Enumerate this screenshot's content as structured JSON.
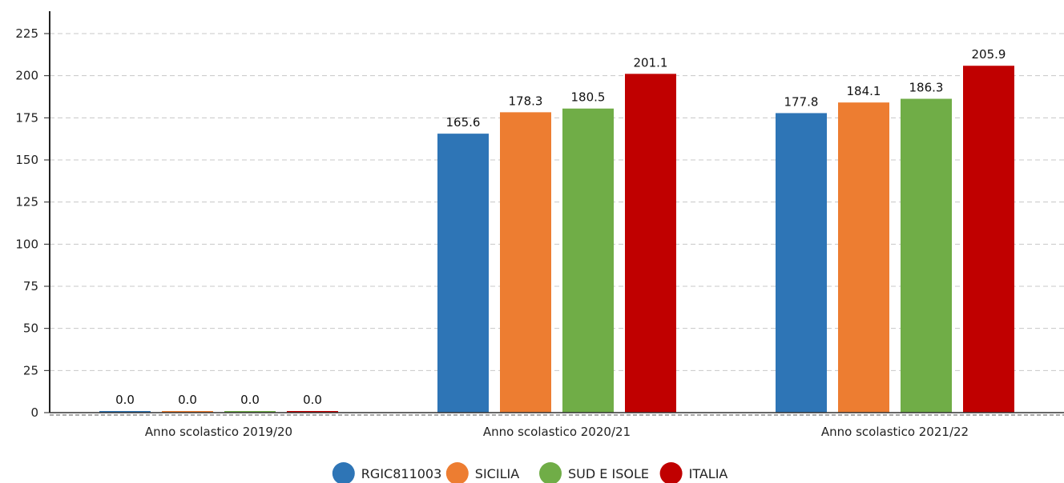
{
  "chart_data": {
    "type": "bar",
    "title": "",
    "xlabel": "",
    "ylabel": "",
    "categories": [
      "Anno scolastico 2019/20",
      "Anno scolastico 2020/21",
      "Anno scolastico 2021/22"
    ],
    "series": [
      {
        "name": "RGIC811003",
        "color": "#2e75b6",
        "values": [
          0.0,
          165.6,
          177.8
        ],
        "labels": [
          "0.0",
          "165.6",
          "177.8"
        ]
      },
      {
        "name": "SICILIA",
        "color": "#ed7d31",
        "values": [
          0.0,
          178.3,
          184.1
        ],
        "labels": [
          "0.0",
          "178.3",
          "184.1"
        ]
      },
      {
        "name": "SUD E ISOLE",
        "color": "#70ad47",
        "values": [
          0.0,
          180.5,
          186.3
        ],
        "labels": [
          "0.0",
          "180.5",
          "186.3"
        ]
      },
      {
        "name": "ITALIA",
        "color": "#c00000",
        "values": [
          0.0,
          201.1,
          205.9
        ],
        "labels": [
          "0.0",
          "201.1",
          "205.9"
        ]
      }
    ],
    "ylim": [
      0,
      225
    ],
    "yticks": [
      0,
      25,
      50,
      75,
      100,
      125,
      150,
      175,
      200,
      225
    ],
    "ytick_labels": [
      "0",
      "25",
      "50",
      "75",
      "100",
      "125",
      "150",
      "175",
      "200",
      "225"
    ],
    "grid": true,
    "legend_position": "bottom"
  }
}
